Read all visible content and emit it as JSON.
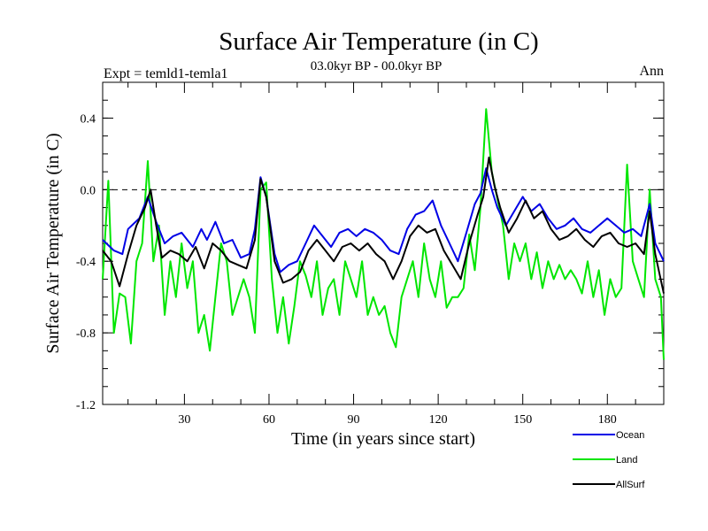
{
  "chart_data": {
    "type": "line",
    "title": "Surface Air Temperature (in C)",
    "subtitle": "03.0kyr BP - 00.0kyr BP",
    "left_label": "Expt = temld1-temla1",
    "right_label": "Ann",
    "xlabel": "Time (in years since start)",
    "ylabel": "Surface Air Temperature (in C)",
    "xlim": [
      1,
      200
    ],
    "ylim": [
      -1.2,
      0.6
    ],
    "xticks": [
      30,
      60,
      90,
      120,
      150,
      180
    ],
    "xticklabels": [
      "30",
      "60",
      "90",
      "120",
      "150",
      "180"
    ],
    "yticks": [
      -1.2,
      -0.8,
      -0.4,
      0.0,
      0.4
    ],
    "yticklabels": [
      "-1.2",
      "-0.8",
      "-0.4",
      "0.0",
      "0.4"
    ],
    "reference_line": 0.0,
    "legend_position": "bottom-right",
    "series": [
      {
        "name": "Ocean",
        "color": "#0000e6",
        "keypoints": [
          [
            1,
            -0.28
          ],
          [
            5,
            -0.34
          ],
          [
            8,
            -0.36
          ],
          [
            10,
            -0.22
          ],
          [
            14,
            -0.16
          ],
          [
            17,
            -0.04
          ],
          [
            20,
            -0.18
          ],
          [
            23,
            -0.3
          ],
          [
            26,
            -0.26
          ],
          [
            29,
            -0.24
          ],
          [
            33,
            -0.32
          ],
          [
            36,
            -0.22
          ],
          [
            38,
            -0.28
          ],
          [
            41,
            -0.18
          ],
          [
            44,
            -0.3
          ],
          [
            47,
            -0.28
          ],
          [
            50,
            -0.38
          ],
          [
            53,
            -0.36
          ],
          [
            55,
            -0.22
          ],
          [
            57,
            0.07
          ],
          [
            59,
            -0.04
          ],
          [
            62,
            -0.36
          ],
          [
            64,
            -0.46
          ],
          [
            67,
            -0.42
          ],
          [
            70,
            -0.4
          ],
          [
            73,
            -0.3
          ],
          [
            76,
            -0.2
          ],
          [
            79,
            -0.26
          ],
          [
            82,
            -0.32
          ],
          [
            85,
            -0.24
          ],
          [
            88,
            -0.22
          ],
          [
            91,
            -0.26
          ],
          [
            94,
            -0.22
          ],
          [
            97,
            -0.24
          ],
          [
            100,
            -0.28
          ],
          [
            103,
            -0.34
          ],
          [
            106,
            -0.36
          ],
          [
            109,
            -0.22
          ],
          [
            112,
            -0.14
          ],
          [
            115,
            -0.12
          ],
          [
            118,
            -0.06
          ],
          [
            121,
            -0.2
          ],
          [
            124,
            -0.3
          ],
          [
            127,
            -0.4
          ],
          [
            130,
            -0.24
          ],
          [
            133,
            -0.08
          ],
          [
            135,
            -0.02
          ],
          [
            137,
            0.12
          ],
          [
            139,
            0.0
          ],
          [
            141,
            -0.1
          ],
          [
            144,
            -0.2
          ],
          [
            147,
            -0.12
          ],
          [
            150,
            -0.04
          ],
          [
            153,
            -0.12
          ],
          [
            156,
            -0.08
          ],
          [
            159,
            -0.16
          ],
          [
            162,
            -0.22
          ],
          [
            165,
            -0.2
          ],
          [
            168,
            -0.16
          ],
          [
            171,
            -0.22
          ],
          [
            174,
            -0.24
          ],
          [
            177,
            -0.2
          ],
          [
            180,
            -0.16
          ],
          [
            183,
            -0.2
          ],
          [
            186,
            -0.24
          ],
          [
            189,
            -0.22
          ],
          [
            192,
            -0.26
          ],
          [
            195,
            -0.08
          ],
          [
            197,
            -0.3
          ],
          [
            200,
            -0.4
          ]
        ]
      },
      {
        "name": "Land",
        "color": "#00e600",
        "keypoints": [
          [
            1,
            -0.5
          ],
          [
            3,
            0.05
          ],
          [
            5,
            -0.8
          ],
          [
            7,
            -0.58
          ],
          [
            9,
            -0.6
          ],
          [
            11,
            -0.86
          ],
          [
            13,
            -0.4
          ],
          [
            15,
            -0.3
          ],
          [
            17,
            0.16
          ],
          [
            19,
            -0.4
          ],
          [
            21,
            -0.2
          ],
          [
            23,
            -0.7
          ],
          [
            25,
            -0.4
          ],
          [
            27,
            -0.6
          ],
          [
            29,
            -0.3
          ],
          [
            31,
            -0.55
          ],
          [
            33,
            -0.4
          ],
          [
            35,
            -0.8
          ],
          [
            37,
            -0.7
          ],
          [
            39,
            -0.9
          ],
          [
            41,
            -0.6
          ],
          [
            43,
            -0.3
          ],
          [
            45,
            -0.4
          ],
          [
            47,
            -0.7
          ],
          [
            49,
            -0.6
          ],
          [
            51,
            -0.5
          ],
          [
            53,
            -0.6
          ],
          [
            55,
            -0.8
          ],
          [
            57,
            0.0
          ],
          [
            59,
            0.04
          ],
          [
            61,
            -0.5
          ],
          [
            63,
            -0.8
          ],
          [
            65,
            -0.6
          ],
          [
            67,
            -0.86
          ],
          [
            69,
            -0.65
          ],
          [
            71,
            -0.4
          ],
          [
            73,
            -0.48
          ],
          [
            75,
            -0.6
          ],
          [
            77,
            -0.4
          ],
          [
            79,
            -0.7
          ],
          [
            81,
            -0.55
          ],
          [
            83,
            -0.5
          ],
          [
            85,
            -0.7
          ],
          [
            87,
            -0.4
          ],
          [
            89,
            -0.5
          ],
          [
            91,
            -0.6
          ],
          [
            93,
            -0.4
          ],
          [
            95,
            -0.7
          ],
          [
            97,
            -0.6
          ],
          [
            99,
            -0.7
          ],
          [
            101,
            -0.65
          ],
          [
            103,
            -0.8
          ],
          [
            105,
            -0.88
          ],
          [
            107,
            -0.6
          ],
          [
            109,
            -0.5
          ],
          [
            111,
            -0.4
          ],
          [
            113,
            -0.6
          ],
          [
            115,
            -0.3
          ],
          [
            117,
            -0.5
          ],
          [
            119,
            -0.6
          ],
          [
            121,
            -0.4
          ],
          [
            123,
            -0.66
          ],
          [
            125,
            -0.6
          ],
          [
            127,
            -0.6
          ],
          [
            129,
            -0.55
          ],
          [
            131,
            -0.25
          ],
          [
            133,
            -0.45
          ],
          [
            135,
            -0.1
          ],
          [
            137,
            0.45
          ],
          [
            139,
            0.1
          ],
          [
            141,
            -0.05
          ],
          [
            143,
            -0.2
          ],
          [
            145,
            -0.5
          ],
          [
            147,
            -0.3
          ],
          [
            149,
            -0.4
          ],
          [
            151,
            -0.3
          ],
          [
            153,
            -0.5
          ],
          [
            155,
            -0.35
          ],
          [
            157,
            -0.55
          ],
          [
            159,
            -0.4
          ],
          [
            161,
            -0.5
          ],
          [
            163,
            -0.42
          ],
          [
            165,
            -0.5
          ],
          [
            167,
            -0.45
          ],
          [
            169,
            -0.5
          ],
          [
            171,
            -0.58
          ],
          [
            173,
            -0.4
          ],
          [
            175,
            -0.6
          ],
          [
            177,
            -0.45
          ],
          [
            179,
            -0.7
          ],
          [
            181,
            -0.5
          ],
          [
            183,
            -0.6
          ],
          [
            185,
            -0.55
          ],
          [
            187,
            0.14
          ],
          [
            189,
            -0.4
          ],
          [
            191,
            -0.5
          ],
          [
            193,
            -0.6
          ],
          [
            195,
            0.0
          ],
          [
            197,
            -0.5
          ],
          [
            199,
            -0.6
          ],
          [
            200,
            -0.95
          ]
        ]
      },
      {
        "name": "AllSurf",
        "color": "#000000",
        "keypoints": [
          [
            1,
            -0.34
          ],
          [
            4,
            -0.4
          ],
          [
            7,
            -0.54
          ],
          [
            10,
            -0.36
          ],
          [
            13,
            -0.2
          ],
          [
            16,
            -0.1
          ],
          [
            18,
            0.0
          ],
          [
            20,
            -0.2
          ],
          [
            22,
            -0.38
          ],
          [
            25,
            -0.34
          ],
          [
            28,
            -0.36
          ],
          [
            31,
            -0.4
          ],
          [
            34,
            -0.32
          ],
          [
            37,
            -0.44
          ],
          [
            40,
            -0.3
          ],
          [
            43,
            -0.34
          ],
          [
            46,
            -0.4
          ],
          [
            49,
            -0.42
          ],
          [
            52,
            -0.44
          ],
          [
            55,
            -0.28
          ],
          [
            57,
            0.06
          ],
          [
            59,
            -0.04
          ],
          [
            62,
            -0.4
          ],
          [
            65,
            -0.52
          ],
          [
            68,
            -0.5
          ],
          [
            71,
            -0.46
          ],
          [
            74,
            -0.34
          ],
          [
            77,
            -0.28
          ],
          [
            80,
            -0.34
          ],
          [
            83,
            -0.4
          ],
          [
            86,
            -0.32
          ],
          [
            89,
            -0.3
          ],
          [
            92,
            -0.34
          ],
          [
            95,
            -0.3
          ],
          [
            98,
            -0.36
          ],
          [
            101,
            -0.4
          ],
          [
            104,
            -0.5
          ],
          [
            107,
            -0.4
          ],
          [
            110,
            -0.26
          ],
          [
            113,
            -0.2
          ],
          [
            116,
            -0.24
          ],
          [
            119,
            -0.22
          ],
          [
            122,
            -0.34
          ],
          [
            125,
            -0.42
          ],
          [
            128,
            -0.5
          ],
          [
            131,
            -0.3
          ],
          [
            134,
            -0.14
          ],
          [
            136,
            -0.04
          ],
          [
            138,
            0.18
          ],
          [
            140,
            0.02
          ],
          [
            142,
            -0.1
          ],
          [
            145,
            -0.24
          ],
          [
            148,
            -0.16
          ],
          [
            151,
            -0.06
          ],
          [
            154,
            -0.16
          ],
          [
            157,
            -0.12
          ],
          [
            160,
            -0.22
          ],
          [
            163,
            -0.28
          ],
          [
            166,
            -0.26
          ],
          [
            169,
            -0.22
          ],
          [
            172,
            -0.28
          ],
          [
            175,
            -0.32
          ],
          [
            178,
            -0.26
          ],
          [
            181,
            -0.24
          ],
          [
            184,
            -0.3
          ],
          [
            187,
            -0.32
          ],
          [
            190,
            -0.3
          ],
          [
            193,
            -0.36
          ],
          [
            195,
            -0.12
          ],
          [
            197,
            -0.36
          ],
          [
            200,
            -0.58
          ]
        ]
      }
    ]
  }
}
